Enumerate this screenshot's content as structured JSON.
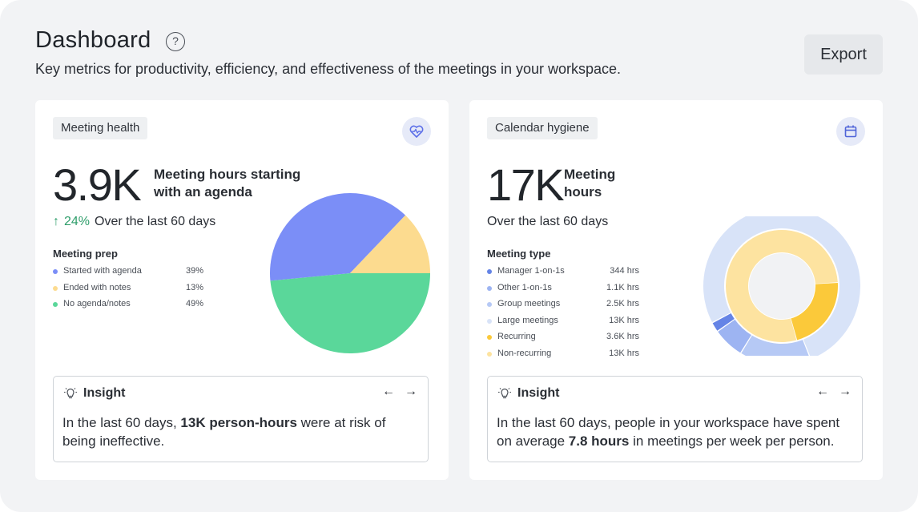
{
  "header": {
    "title": "Dashboard",
    "help_glyph": "?",
    "subtitle": "Key metrics for productivity, efficiency, and effectiveness of the meetings in your workspace.",
    "export_label": "Export"
  },
  "meeting_health": {
    "tag": "Meeting health",
    "icon": "heart-pulse-icon",
    "metric": "3.9K",
    "metric_label": "Meeting hours starting with an agenda",
    "trend_arrow": "↑",
    "trend_pct": "24%",
    "trend_text": "Over the last 60 days",
    "legend_title": "Meeting prep",
    "legend": [
      {
        "label": "Started with agenda",
        "value": "39%",
        "color": "#7b8ef7"
      },
      {
        "label": "Ended with notes",
        "value": "13%",
        "color": "#fcdb8f"
      },
      {
        "label": "No agenda/notes",
        "value": "49%",
        "color": "#5ad79a"
      }
    ],
    "insight": {
      "title": "Insight",
      "prev": "←",
      "next": "→",
      "text_before": "In the last 60 days, ",
      "text_bold": "13K person-hours",
      "text_after": " were at risk of being ineffective."
    }
  },
  "calendar_hygiene": {
    "tag": "Calendar hygiene",
    "icon": "calendar-icon",
    "metric": "17K",
    "metric_label": "Meeting hours",
    "trend_text": "Over the last 60 days",
    "legend_title": "Meeting type",
    "legend": [
      {
        "label": "Manager 1-on-1s",
        "value": "344 hrs",
        "color": "#6584e6"
      },
      {
        "label": "Other 1-on-1s",
        "value": "1.1K hrs",
        "color": "#9db4f2"
      },
      {
        "label": "Group meetings",
        "value": "2.5K hrs",
        "color": "#b6c9f5"
      },
      {
        "label": "Large meetings",
        "value": "13K hrs",
        "color": "#d8e3f8"
      },
      {
        "label": "Recurring",
        "value": "3.6K hrs",
        "color": "#fbc93a"
      },
      {
        "label": "Non-recurring",
        "value": "13K hrs",
        "color": "#fde3a0"
      }
    ],
    "insight": {
      "title": "Insight",
      "prev": "←",
      "next": "→",
      "text_before": "In the last 60 days, people in your workspace have spent on average ",
      "text_bold": "7.8 hours",
      "text_after": " in meetings per week per person."
    }
  },
  "chart_data": [
    {
      "type": "pie",
      "title": "Meeting prep",
      "categories": [
        "Started with agenda",
        "Ended with notes",
        "No agenda/notes"
      ],
      "values": [
        39,
        13,
        49
      ],
      "colors": [
        "#7b8ef7",
        "#fcdb8f",
        "#5ad79a"
      ]
    },
    {
      "type": "pie",
      "title": "Meeting type",
      "series": [
        {
          "name": "Type (outer ring)",
          "categories": [
            "Manager 1-on-1s",
            "Other 1-on-1s",
            "Group meetings",
            "Large meetings"
          ],
          "values": [
            0.344,
            1.1,
            2.5,
            13
          ],
          "unit": "K hrs",
          "colors": [
            "#6584e6",
            "#9db4f2",
            "#b6c9f5",
            "#d8e3f8"
          ]
        },
        {
          "name": "Recurrence (inner ring)",
          "categories": [
            "Recurring",
            "Non-recurring"
          ],
          "values": [
            3.6,
            13
          ],
          "unit": "K hrs",
          "colors": [
            "#fbc93a",
            "#fde3a0"
          ]
        }
      ]
    }
  ]
}
